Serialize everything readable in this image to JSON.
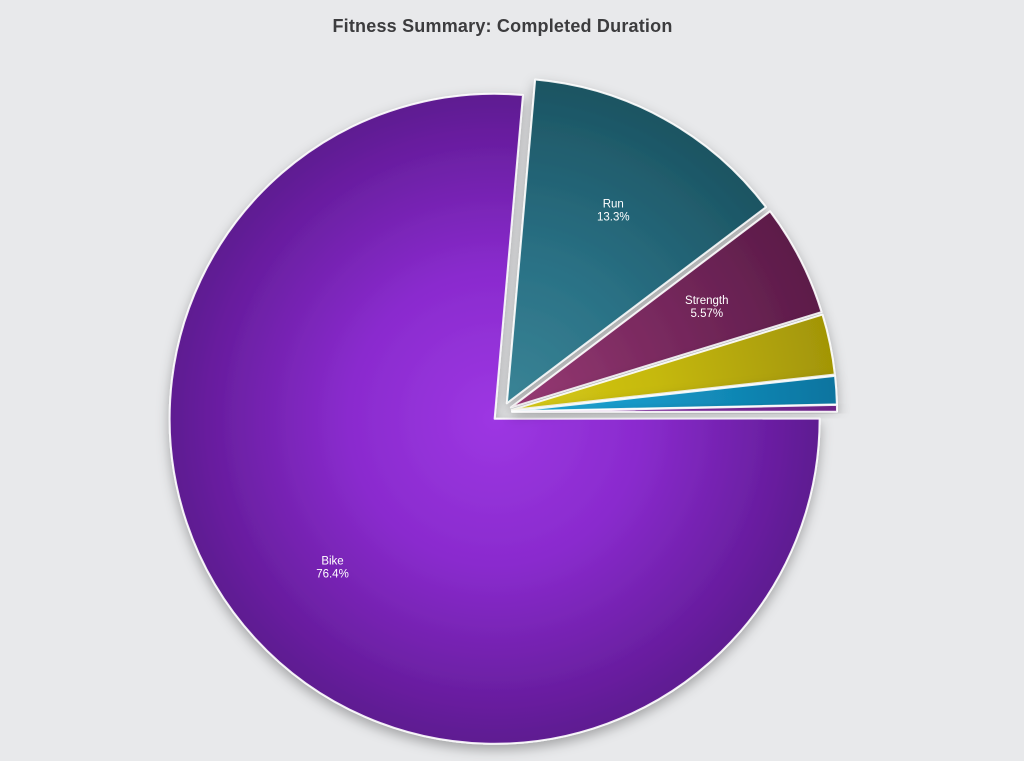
{
  "page": {
    "background_color": "#e8e9eb"
  },
  "chart_data": {
    "type": "pie",
    "title": "Fitness Summary: Completed Duration",
    "legend_position": "none",
    "grid": false,
    "start_angle_deg": 5,
    "direction": "clockwise",
    "exploded": true,
    "slices": [
      {
        "label": "Run",
        "percent": 13.3,
        "percent_label": "13.3%",
        "show_label": true,
        "color_inner": "#3a8496",
        "color_mid": "#2a7185",
        "color_outer": "#1c5462"
      },
      {
        "label": "Strength",
        "percent": 5.57,
        "percent_label": "5.57%",
        "show_label": true,
        "color_inner": "#983a74",
        "color_mid": "#7c2b61",
        "color_outer": "#5c1c49"
      },
      {
        "label": "",
        "percent": 3.0,
        "percent_label": "",
        "show_label": false,
        "color_inner": "#d6ca15",
        "color_mid": "#c6b90f",
        "color_outer": "#a29506"
      },
      {
        "label": "",
        "percent": 1.4,
        "percent_label": "",
        "show_label": false,
        "color_inner": "#22a7d6",
        "color_mid": "#1495c4",
        "color_outer": "#0d749f"
      },
      {
        "label": "",
        "percent": 0.33,
        "percent_label": "",
        "show_label": false,
        "color_inner": "#8a35ac",
        "color_mid": "#7b2d97",
        "color_outer": "#6b2387"
      },
      {
        "label": "Bike",
        "percent": 76.4,
        "percent_label": "76.4%",
        "show_label": true,
        "color_inner": "#9d37e3",
        "color_mid": "#8a2bce",
        "color_outer": "#5e1a91"
      }
    ]
  },
  "styles": {
    "title_color": "#3c3c3e",
    "slice_label_color": "#ffffff",
    "slice_stroke_color": "#ffffff"
  }
}
